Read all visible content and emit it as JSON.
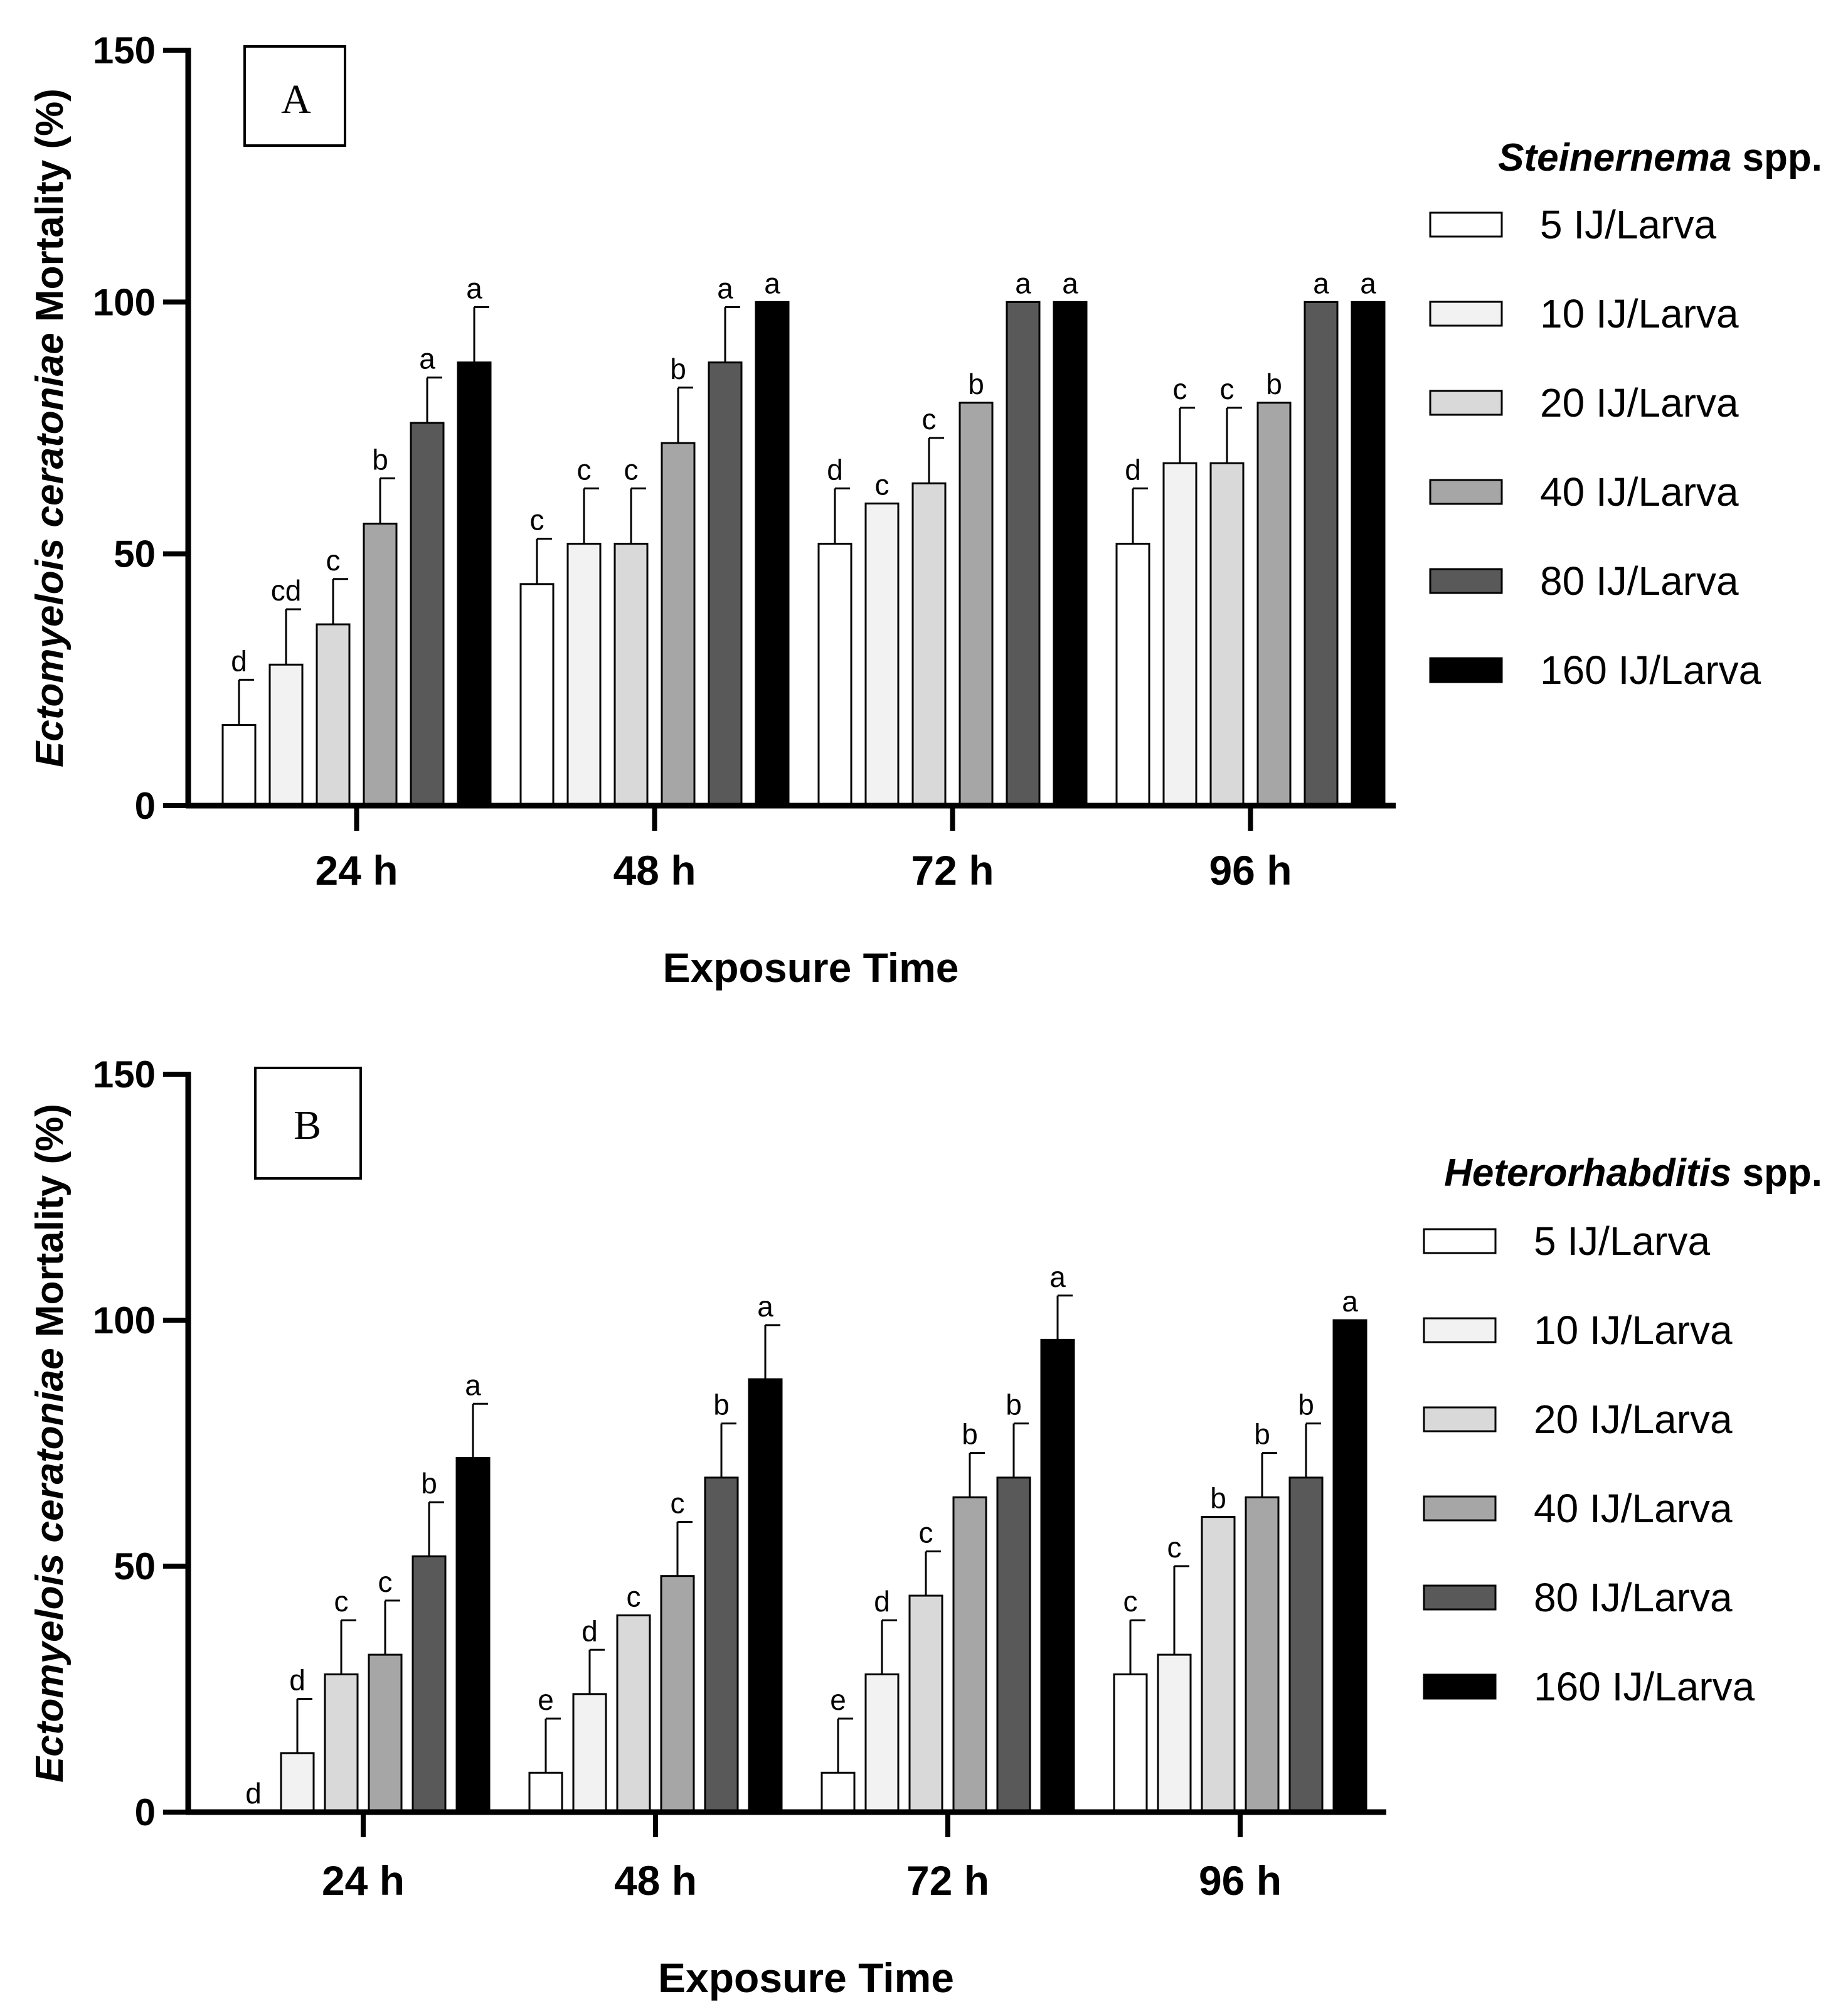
{
  "colors": [
    "#ffffff",
    "#f2f2f2",
    "#d9d9d9",
    "#a6a6a6",
    "#595959",
    "#000000"
  ],
  "chart_data": [
    {
      "type": "bar",
      "panel_label": "A",
      "legend_title_italic": "Steinernema",
      "legend_title_rest": " spp.",
      "xlabel": "Exposure Time",
      "ylabel_italic": "Ectomyelois ceratoniae",
      "ylabel_rest": " Mortality (%)",
      "ylim": [
        0,
        150
      ],
      "yticks": [
        0,
        50,
        100,
        150
      ],
      "categories": [
        "24 h",
        "48 h",
        "72 h",
        "96 h"
      ],
      "series": [
        {
          "name": "5 IJ/Larva",
          "values": [
            16,
            44,
            52,
            52
          ],
          "errors": [
            9,
            9,
            11,
            11
          ],
          "letters": [
            "d",
            "c",
            "d",
            "d"
          ]
        },
        {
          "name": "10 IJ/Larva",
          "values": [
            28,
            52,
            60,
            68
          ],
          "errors": [
            11,
            11,
            0,
            11
          ],
          "letters": [
            "cd",
            "c",
            "c",
            "c"
          ]
        },
        {
          "name": "20 IJ/Larva",
          "values": [
            36,
            52,
            64,
            68
          ],
          "errors": [
            9,
            11,
            9,
            11
          ],
          "letters": [
            "c",
            "c",
            "c",
            "c"
          ]
        },
        {
          "name": "40 IJ/Larva",
          "values": [
            56,
            72,
            80,
            80
          ],
          "errors": [
            9,
            11,
            0,
            0
          ],
          "letters": [
            "b",
            "b",
            "b",
            "b"
          ]
        },
        {
          "name": "80 IJ/Larva",
          "values": [
            76,
            88,
            100,
            100
          ],
          "errors": [
            9,
            11,
            0,
            0
          ],
          "letters": [
            "a",
            "a",
            "a",
            "a"
          ]
        },
        {
          "name": "160 IJ/Larva",
          "values": [
            88,
            100,
            100,
            100
          ],
          "errors": [
            11,
            0,
            0,
            0
          ],
          "letters": [
            "a",
            "a",
            "a",
            "a"
          ]
        }
      ]
    },
    {
      "type": "bar",
      "panel_label": "B",
      "legend_title_italic": "Heterorhabditis",
      "legend_title_rest": " spp.",
      "xlabel": "Exposure Time",
      "ylabel_italic": "Ectomyelois ceratoniae",
      "ylabel_rest": " Mortality (%)",
      "ylim": [
        0,
        150
      ],
      "yticks": [
        0,
        50,
        100,
        150
      ],
      "categories": [
        "24 h",
        "48 h",
        "72 h",
        "96 h"
      ],
      "series": [
        {
          "name": "5 IJ/Larva",
          "values": [
            0,
            8,
            8,
            28
          ],
          "errors": [
            0,
            11,
            11,
            11
          ],
          "letters": [
            "d",
            "e",
            "e",
            "c"
          ]
        },
        {
          "name": "10 IJ/Larva",
          "values": [
            12,
            24,
            28,
            32
          ],
          "errors": [
            11,
            9,
            11,
            18
          ],
          "letters": [
            "d",
            "d",
            "d",
            "c"
          ]
        },
        {
          "name": "20 IJ/Larva",
          "values": [
            28,
            40,
            44,
            60
          ],
          "errors": [
            11,
            0,
            9,
            0
          ],
          "letters": [
            "c",
            "c",
            "c",
            "b"
          ]
        },
        {
          "name": "40 IJ/Larva",
          "values": [
            32,
            48,
            64,
            64
          ],
          "errors": [
            11,
            11,
            9,
            9
          ],
          "letters": [
            "c",
            "c",
            "b",
            "b"
          ]
        },
        {
          "name": "80 IJ/Larva",
          "values": [
            52,
            68,
            68,
            68
          ],
          "errors": [
            11,
            11,
            11,
            11
          ],
          "letters": [
            "b",
            "b",
            "b",
            "b"
          ]
        },
        {
          "name": "160 IJ/Larva",
          "values": [
            72,
            88,
            96,
            100
          ],
          "errors": [
            11,
            11,
            9,
            0
          ],
          "letters": [
            "a",
            "a",
            "a",
            "a"
          ]
        }
      ]
    }
  ]
}
